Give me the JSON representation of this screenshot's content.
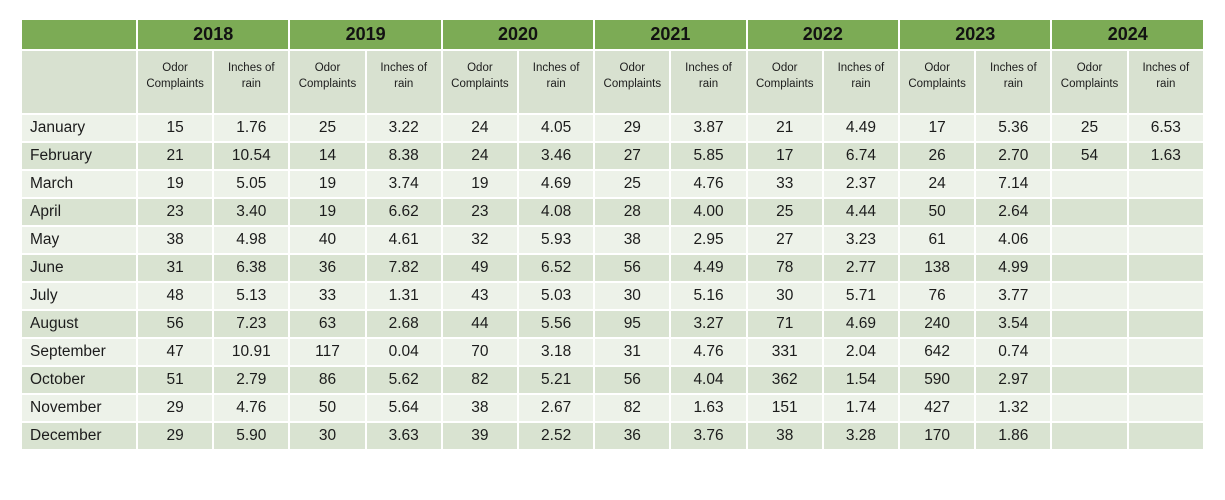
{
  "colors": {
    "header_green": "#7CAB55",
    "subheader_bg": "#D8E1D0",
    "row_light": "#EDF2E9",
    "row_dark": "#D9E3D1",
    "text": "#1C1C1C"
  },
  "chart_data": {
    "type": "table",
    "years": [
      "2018",
      "2019",
      "2020",
      "2021",
      "2022",
      "2023",
      "2024"
    ],
    "sub_columns": [
      "Odor Complaints",
      "Inches of rain"
    ],
    "rows": [
      {
        "month": "January",
        "values": [
          "15",
          "1.76",
          "25",
          "3.22",
          "24",
          "4.05",
          "29",
          "3.87",
          "21",
          "4.49",
          "17",
          "5.36",
          "25",
          "6.53"
        ]
      },
      {
        "month": "February",
        "values": [
          "21",
          "10.54",
          "14",
          "8.38",
          "24",
          "3.46",
          "27",
          "5.85",
          "17",
          "6.74",
          "26",
          "2.70",
          "54",
          "1.63"
        ]
      },
      {
        "month": "March",
        "values": [
          "19",
          "5.05",
          "19",
          "3.74",
          "19",
          "4.69",
          "25",
          "4.76",
          "33",
          "2.37",
          "24",
          "7.14",
          "",
          ""
        ]
      },
      {
        "month": "April",
        "values": [
          "23",
          "3.40",
          "19",
          "6.62",
          "23",
          "4.08",
          "28",
          "4.00",
          "25",
          "4.44",
          "50",
          "2.64",
          "",
          ""
        ]
      },
      {
        "month": "May",
        "values": [
          "38",
          "4.98",
          "40",
          "4.61",
          "32",
          "5.93",
          "38",
          "2.95",
          "27",
          "3.23",
          "61",
          "4.06",
          "",
          ""
        ]
      },
      {
        "month": "June",
        "values": [
          "31",
          "6.38",
          "36",
          "7.82",
          "49",
          "6.52",
          "56",
          "4.49",
          "78",
          "2.77",
          "138",
          "4.99",
          "",
          ""
        ]
      },
      {
        "month": "July",
        "values": [
          "48",
          "5.13",
          "33",
          "1.31",
          "43",
          "5.03",
          "30",
          "5.16",
          "30",
          "5.71",
          "76",
          "3.77",
          "",
          ""
        ]
      },
      {
        "month": "August",
        "values": [
          "56",
          "7.23",
          "63",
          "2.68",
          "44",
          "5.56",
          "95",
          "3.27",
          "71",
          "4.69",
          "240",
          "3.54",
          "",
          ""
        ]
      },
      {
        "month": "September",
        "values": [
          "47",
          "10.91",
          "117",
          "0.04",
          "70",
          "3.18",
          "31",
          "4.76",
          "331",
          "2.04",
          "642",
          "0.74",
          "",
          ""
        ]
      },
      {
        "month": "October",
        "values": [
          "51",
          "2.79",
          "86",
          "5.62",
          "82",
          "5.21",
          "56",
          "4.04",
          "362",
          "1.54",
          "590",
          "2.97",
          "",
          ""
        ]
      },
      {
        "month": "November",
        "values": [
          "29",
          "4.76",
          "50",
          "5.64",
          "38",
          "2.67",
          "82",
          "1.63",
          "151",
          "1.74",
          "427",
          "1.32",
          "",
          ""
        ]
      },
      {
        "month": "December",
        "values": [
          "29",
          "5.90",
          "30",
          "3.63",
          "39",
          "2.52",
          "36",
          "3.76",
          "38",
          "3.28",
          "170",
          "1.86",
          "",
          ""
        ]
      }
    ]
  }
}
